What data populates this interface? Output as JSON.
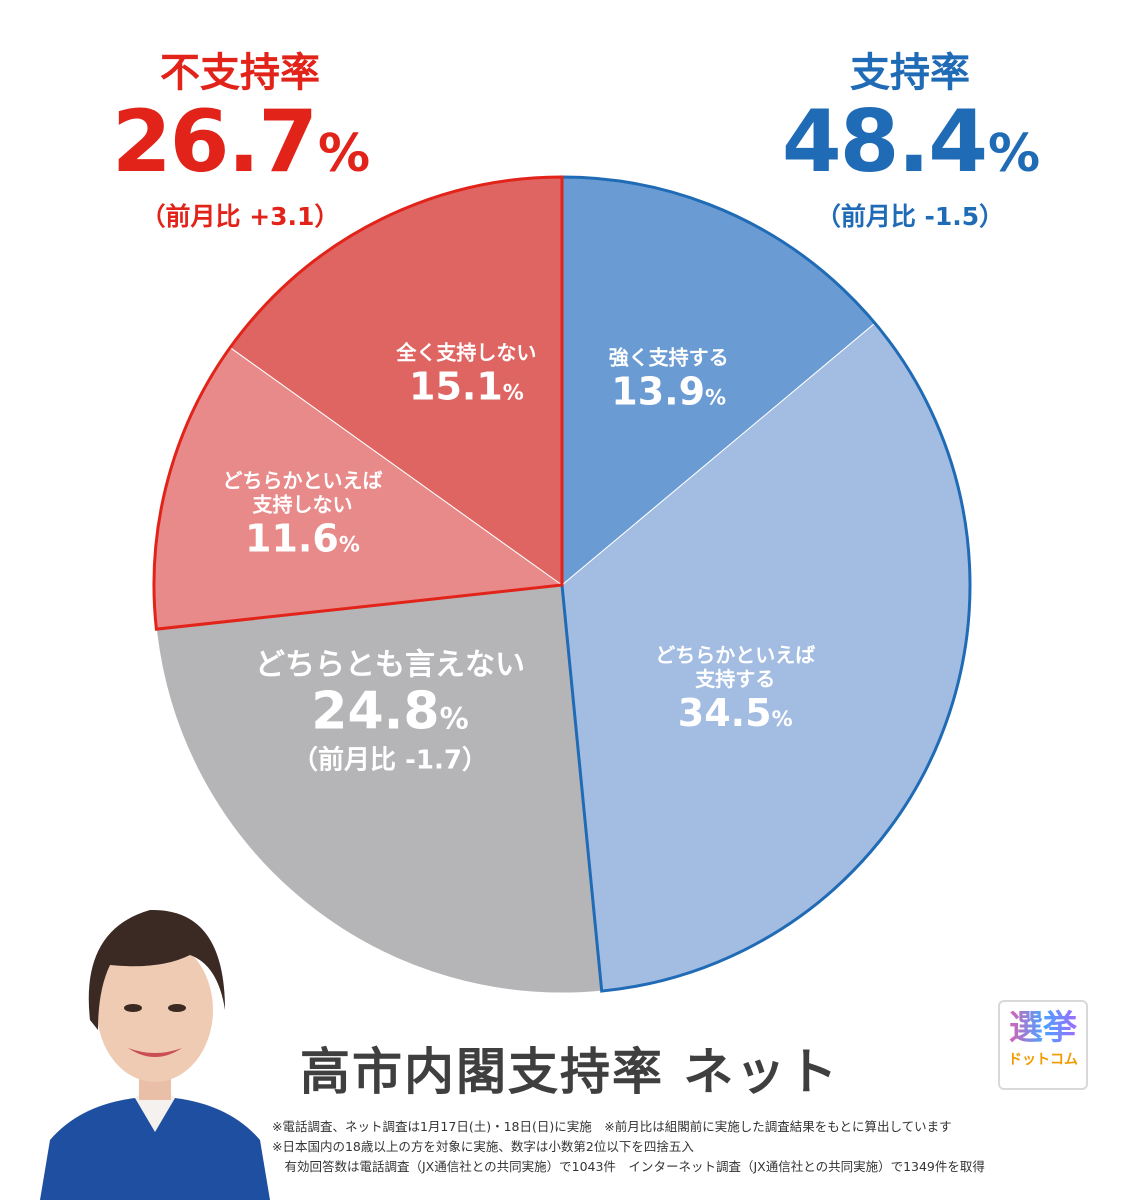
{
  "header": {
    "disapprove": {
      "label": "不支持率",
      "value": "26.7",
      "unit": "%",
      "change": "（前月比 +3.1）"
    },
    "approve": {
      "label": "支持率",
      "value": "48.4",
      "unit": "%",
      "change": "（前月比 -1.5）"
    }
  },
  "title": "高市内閣支持率 ネット",
  "notes": [
    "※電話調査、ネット調査は1月17日(土)・18日(日)に実施　※前月比は組閣前に実施した調査結果をもとに算出しています",
    "※日本国内の18歳以上の方を対象に実施、数字は小数第2位以下を四捨五入",
    "　有効回答数は電話調査（JX通信社との共同実施）で1043件　インターネット調査（JX通信社との共同実施）で1349件を取得"
  ],
  "logo": {
    "line1": "選挙",
    "line2": "ドットコム"
  },
  "colors": {
    "approve_outline": "#1f6bb5",
    "disapprove_outline": "#e2231a",
    "strongly_approve": "#6a9bd3",
    "somewhat_approve": "#a3bce2",
    "neutral": "#b5b5b7",
    "somewhat_disapprove": "#e88a89",
    "strongly_disapprove": "#df6562"
  },
  "chart_data": {
    "type": "pie",
    "start": "12 o'clock, clockwise",
    "slices": [
      {
        "label": "強く支持する",
        "value": 13.9,
        "unit": "%",
        "color": "#6a9bd3",
        "group": "approve"
      },
      {
        "label": "どちらかといえば\n支持する",
        "value": 34.5,
        "unit": "%",
        "color": "#a3bce2",
        "group": "approve"
      },
      {
        "label": "どちらとも言えない",
        "value": 24.8,
        "unit": "%",
        "color": "#b5b5b7",
        "change": "（前月比 -1.7）"
      },
      {
        "label": "どちらかといえば\n支持しない",
        "value": 11.6,
        "unit": "%",
        "color": "#e88a89",
        "group": "disapprove"
      },
      {
        "label": "全く支持しない",
        "value": 15.1,
        "unit": "%",
        "color": "#df6562",
        "group": "disapprove"
      }
    ]
  }
}
